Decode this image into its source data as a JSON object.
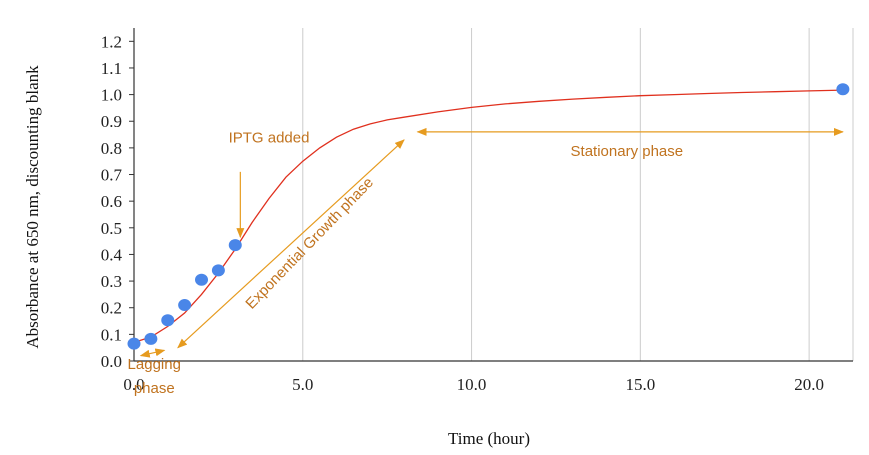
{
  "chart_data": {
    "type": "scatter",
    "xlabel": "Time (hour)",
    "ylabel": "Absorbance at 650 nm, discounting blank",
    "xlim": [
      0,
      21.3
    ],
    "ylim": [
      0,
      1.25
    ],
    "x_ticks": [
      0,
      5,
      10,
      15,
      20
    ],
    "x_tick_labels": [
      "0.0",
      "5.0",
      "10.0",
      "15.0",
      "20.0"
    ],
    "y_ticks": [
      0,
      0.1,
      0.2,
      0.3,
      0.4,
      0.5,
      0.6,
      0.7,
      0.8,
      0.9,
      1.0,
      1.1,
      1.2
    ],
    "y_tick_labels": [
      "0.0",
      "0.1",
      "0.2",
      "0.3",
      "0.4",
      "0.5",
      "0.6",
      "0.7",
      "0.8",
      "0.9",
      "1.0",
      "1.1",
      "1.2"
    ],
    "grid": "vertical",
    "colors": {
      "points": "#4a86e8",
      "fit_line": "#e0301e",
      "annotations": "#c0731f",
      "arrows": "#e69b1f",
      "grid": "#cccccc"
    },
    "series": [
      {
        "type": "scatter",
        "x": [
          0.0,
          0.5,
          1.0,
          1.5,
          2.0,
          2.5,
          3.0,
          21.0
        ],
        "y": [
          0.065,
          0.083,
          0.153,
          0.21,
          0.305,
          0.34,
          0.435,
          1.02
        ]
      },
      {
        "type": "line",
        "x": [
          0.0,
          0.5,
          1.0,
          1.5,
          2.0,
          2.5,
          3.0,
          3.5,
          4.0,
          4.5,
          5.0,
          5.5,
          6.0,
          6.5,
          7.0,
          7.5,
          8.0,
          9.0,
          10.0,
          11.0,
          12.0,
          13.0,
          14.0,
          15.0,
          16.0,
          17.0,
          18.0,
          19.0,
          20.0,
          21.0
        ],
        "y": [
          0.07,
          0.09,
          0.13,
          0.18,
          0.25,
          0.33,
          0.42,
          0.52,
          0.61,
          0.69,
          0.75,
          0.8,
          0.84,
          0.87,
          0.89,
          0.905,
          0.915,
          0.935,
          0.952,
          0.965,
          0.975,
          0.983,
          0.99,
          0.996,
          1.0,
          1.004,
          1.008,
          1.011,
          1.014,
          1.017
        ]
      }
    ],
    "annotations": [
      {
        "label": "IPTG added",
        "text_xy": [
          4.0,
          0.82
        ],
        "arrow_from": [
          3.15,
          0.71
        ],
        "arrow_to": [
          3.15,
          0.465
        ],
        "arrowheads": "end"
      },
      {
        "label": "Exponential Growth phase",
        "text_xy": [
          5.3,
          0.43
        ],
        "rotation": -46,
        "arrow_from": [
          1.3,
          0.05
        ],
        "arrow_to": [
          8.0,
          0.83
        ],
        "arrowheads": "both"
      },
      {
        "label": "Stationary phase",
        "text_xy": [
          14.6,
          0.77
        ],
        "arrow_from": [
          8.4,
          0.86
        ],
        "arrow_to": [
          21.0,
          0.86
        ],
        "arrowheads": "both"
      },
      {
        "label": "Lagging",
        "text_xy": [
          0.6,
          -0.03
        ],
        "arrow_from": [
          0.2,
          0.02
        ],
        "arrow_to": [
          0.9,
          0.04
        ],
        "arrowheads": "both"
      },
      {
        "label": "phase",
        "text_xy": [
          0.6,
          -0.12
        ]
      }
    ]
  }
}
